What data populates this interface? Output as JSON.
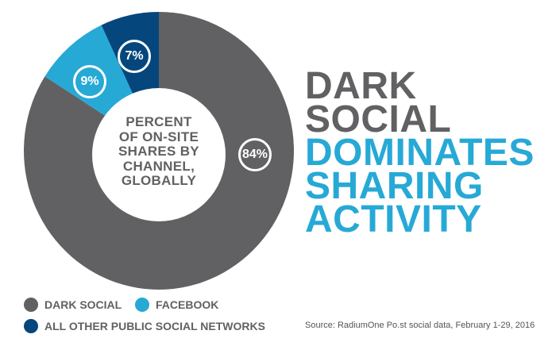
{
  "headline": {
    "line1": "DARK",
    "line2": "SOCIAL",
    "line3": "DOMINATES",
    "line4": "SHARING",
    "line5": "ACTIVITY"
  },
  "center_label": {
    "lines": [
      "PERCENT",
      "OF ON-SITE",
      "SHARES BY",
      "CHANNEL,",
      "GLOBALLY"
    ]
  },
  "slices": [
    {
      "name": "Dark Social",
      "label": "84%",
      "color": "#616164"
    },
    {
      "name": "Facebook",
      "label": "9%",
      "color": "#27a9d6"
    },
    {
      "name": "All Other Public Social Networks",
      "label": "7%",
      "color": "#05467c"
    }
  ],
  "legend": {
    "dark_social": "DARK SOCIAL",
    "facebook": "FACEBOOK",
    "other": "ALL OTHER PUBLIC SOCIAL NETWORKS"
  },
  "source": "Source: RadiumOne Po.st social data, February 1-29, 2016",
  "colors": {
    "dark_social": "#616164",
    "facebook": "#27a9d6",
    "other": "#05467c"
  },
  "chart_data": {
    "type": "pie",
    "title": "Dark Social Dominates Sharing Activity",
    "subtitle": "Percent of on-site shares by channel, globally",
    "categories": [
      "Dark Social",
      "Facebook",
      "All Other Public Social Networks"
    ],
    "values": [
      84,
      9,
      7
    ],
    "unit": "%",
    "donut": true,
    "legend_position": "bottom-left",
    "source": "RadiumOne Po.st social data, February 1-29, 2016"
  }
}
